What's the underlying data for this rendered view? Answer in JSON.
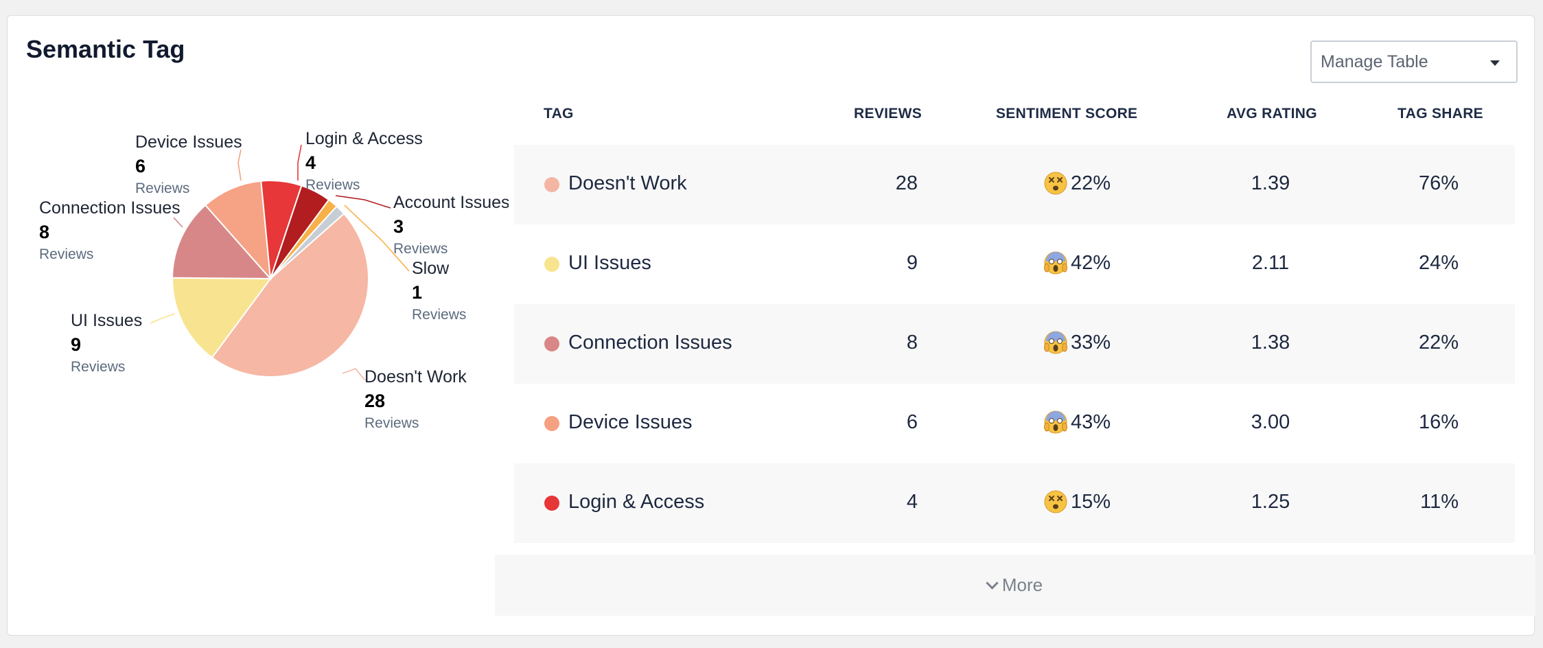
{
  "panel": {
    "title": "Semantic Tag",
    "manage_table_label": "Manage Table"
  },
  "table": {
    "headers": {
      "tag": "TAG",
      "reviews": "REVIEWS",
      "sentiment": "SENTIMENT SCORE",
      "avg_rating": "AVG RATING",
      "tag_share": "TAG SHARE"
    },
    "rows": [
      {
        "tag": "Doesn't Work",
        "color": "#f5b5a3",
        "reviews": "28",
        "sentiment_icon": "dizzy-face-emoji",
        "sentiment": "22%",
        "avg_rating": "1.39",
        "tag_share": "76%"
      },
      {
        "tag": "UI Issues",
        "color": "#f8e48e",
        "reviews": "9",
        "sentiment_icon": "screaming-face-emoji",
        "sentiment": "42%",
        "avg_rating": "2.11",
        "tag_share": "24%"
      },
      {
        "tag": "Connection Issues",
        "color": "#d88686",
        "reviews": "8",
        "sentiment_icon": "screaming-face-emoji",
        "sentiment": "33%",
        "avg_rating": "1.38",
        "tag_share": "22%"
      },
      {
        "tag": "Device Issues",
        "color": "#f5a081",
        "reviews": "6",
        "sentiment_icon": "screaming-face-emoji",
        "sentiment": "43%",
        "avg_rating": "3.00",
        "tag_share": "16%"
      },
      {
        "tag": "Login & Access",
        "color": "#e73637",
        "reviews": "4",
        "sentiment_icon": "dizzy-face-emoji",
        "sentiment": "15%",
        "avg_rating": "1.25",
        "tag_share": "11%"
      }
    ],
    "more_label": "More"
  },
  "chart_data": {
    "type": "pie",
    "unit_label": "Reviews",
    "slices": [
      {
        "name": "Doesn't Work",
        "value": 28,
        "color": "#f6b7a4"
      },
      {
        "name": "UI Issues",
        "value": 9,
        "color": "#f8e490"
      },
      {
        "name": "Connection Issues",
        "value": 8,
        "color": "#d88788"
      },
      {
        "name": "Device Issues",
        "value": 6,
        "color": "#f6a285"
      },
      {
        "name": "Login & Access",
        "value": 4,
        "color": "#e73738"
      },
      {
        "name": "Account Issues",
        "value": 3,
        "color": "#b21d1f"
      },
      {
        "name": "Slow",
        "value": 1,
        "color": "#f7b04a"
      },
      {
        "name": "",
        "value": 1,
        "color": "#c7cdd5"
      }
    ]
  }
}
